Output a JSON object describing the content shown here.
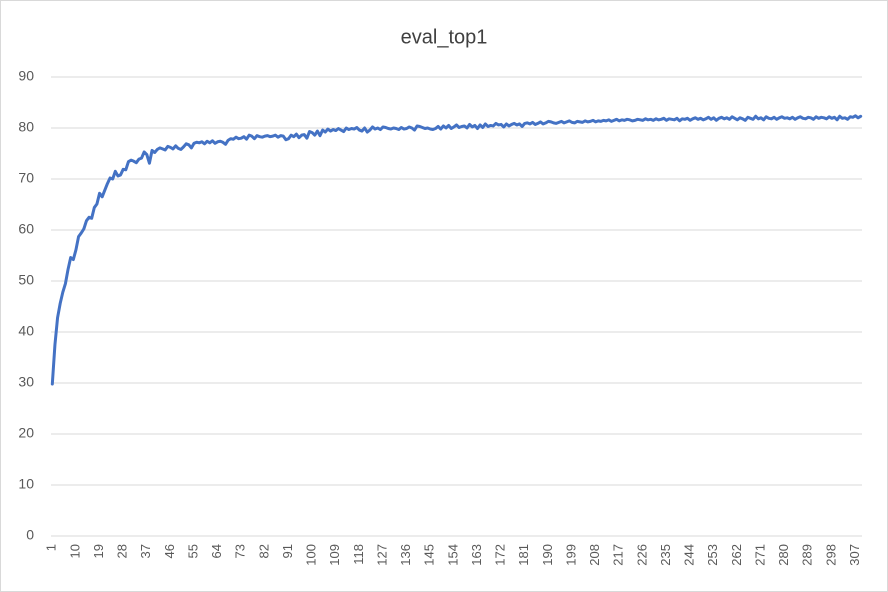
{
  "chart_data": {
    "type": "line",
    "title": "eval_top1",
    "categories": [
      1,
      null,
      null,
      null,
      null,
      null,
      null,
      null,
      null,
      10,
      null,
      null,
      null,
      null,
      null,
      null,
      null,
      null,
      19,
      null,
      null,
      null,
      null,
      null,
      null,
      null,
      null,
      28,
      null,
      null,
      null,
      null,
      null,
      null,
      null,
      null,
      37,
      null,
      null,
      null,
      null,
      null,
      null,
      null,
      null,
      46,
      null,
      null,
      null,
      null,
      null,
      null,
      null,
      null,
      55,
      null,
      null,
      null,
      null,
      null,
      null,
      null,
      null,
      64,
      null,
      null,
      null,
      null,
      null,
      null,
      null,
      null,
      73,
      null,
      null,
      null,
      null,
      null,
      null,
      null,
      null,
      82,
      null,
      null,
      null,
      null,
      null,
      null,
      null,
      null,
      91,
      null,
      null,
      null,
      null,
      null,
      null,
      null,
      null,
      100,
      null,
      null,
      null,
      null,
      null,
      null,
      null,
      null,
      109,
      null,
      null,
      null,
      null,
      null,
      null,
      null,
      null,
      118,
      null,
      null,
      null,
      null,
      null,
      null,
      null,
      null,
      127,
      null,
      null,
      null,
      null,
      null,
      null,
      null,
      null,
      136,
      null,
      null,
      null,
      null,
      null,
      null,
      null,
      null,
      145,
      null,
      null,
      null,
      null,
      null,
      null,
      null,
      null,
      154,
      null,
      null,
      null,
      null,
      null,
      null,
      null,
      null,
      163,
      null,
      null,
      null,
      null,
      null,
      null,
      null,
      null,
      172,
      null,
      null,
      null,
      null,
      null,
      null,
      null,
      null,
      181,
      null,
      null,
      null,
      null,
      null,
      null,
      null,
      null,
      190,
      null,
      null,
      null,
      null,
      null,
      null,
      null,
      null,
      199,
      null,
      null,
      null,
      null,
      null,
      null,
      null,
      null,
      208,
      null,
      null,
      null,
      null,
      null,
      null,
      null,
      null,
      217,
      null,
      null,
      null,
      null,
      null,
      null,
      null,
      null,
      226,
      null,
      null,
      null,
      null,
      null,
      null,
      null,
      null,
      235,
      null,
      null,
      null,
      null,
      null,
      null,
      null,
      null,
      244,
      null,
      null,
      null,
      null,
      null,
      null,
      null,
      null,
      253,
      null,
      null,
      null,
      null,
      null,
      null,
      null,
      null,
      262,
      null,
      null,
      null,
      null,
      null,
      null,
      null,
      null,
      271,
      null,
      null,
      null,
      null,
      null,
      null,
      null,
      null,
      280,
      null,
      null,
      null,
      null,
      null,
      null,
      null,
      null,
      289,
      null,
      null,
      null,
      null,
      null,
      null,
      null,
      null,
      298,
      null,
      null,
      null,
      null,
      null,
      null,
      null,
      null,
      307,
      null,
      null
    ],
    "series": [
      {
        "color": "#4472c4",
        "values": [
          29.8,
          37.5,
          42.8,
          45.6,
          47.8,
          49.5,
          52.3,
          54.6,
          54.2,
          56.1,
          58.7,
          59.4,
          60.2,
          61.8,
          62.5,
          62.3,
          64.4,
          65.1,
          67.2,
          66.5,
          67.8,
          69.1,
          70.2,
          70.0,
          71.5,
          70.6,
          70.8,
          71.9,
          71.8,
          73.4,
          73.7,
          73.5,
          73.2,
          73.9,
          74.1,
          75.3,
          74.8,
          73.1,
          75.6,
          75.2,
          75.8,
          76.1,
          75.9,
          75.7,
          76.4,
          76.2,
          75.9,
          76.5,
          76.0,
          75.8,
          76.3,
          76.9,
          76.7,
          76.1,
          77.0,
          77.2,
          77.1,
          77.3,
          76.9,
          77.4,
          77.1,
          77.5,
          77.0,
          77.3,
          77.4,
          77.2,
          76.8,
          77.6,
          77.9,
          77.8,
          78.2,
          77.9,
          78.0,
          78.3,
          77.8,
          78.6,
          78.4,
          77.9,
          78.5,
          78.3,
          78.2,
          78.4,
          78.5,
          78.3,
          78.4,
          78.6,
          78.2,
          78.5,
          78.4,
          77.7,
          77.9,
          78.6,
          78.3,
          78.8,
          78.1,
          78.6,
          78.7,
          78.0,
          79.3,
          79.1,
          78.6,
          79.4,
          78.5,
          79.6,
          79.2,
          79.8,
          79.4,
          79.7,
          79.5,
          79.9,
          79.6,
          79.3,
          80.0,
          79.7,
          79.9,
          79.8,
          80.1,
          79.6,
          79.4,
          80.0,
          79.2,
          79.6,
          80.2,
          79.8,
          80.0,
          79.7,
          80.2,
          80.1,
          79.9,
          79.8,
          80.0,
          79.9,
          79.7,
          80.1,
          79.8,
          79.9,
          80.2,
          80.0,
          79.6,
          80.4,
          80.3,
          80.1,
          79.9,
          80.0,
          79.8,
          79.7,
          79.9,
          80.3,
          79.8,
          80.4,
          80.0,
          80.5,
          79.9,
          80.2,
          80.6,
          80.1,
          80.3,
          80.4,
          80.0,
          80.7,
          80.2,
          80.5,
          79.9,
          80.6,
          80.1,
          80.8,
          80.3,
          80.5,
          80.4,
          80.9,
          80.6,
          80.7,
          80.2,
          80.8,
          80.4,
          80.7,
          80.9,
          80.6,
          80.8,
          80.3,
          80.9,
          81.0,
          80.8,
          81.1,
          80.7,
          80.9,
          81.2,
          80.8,
          81.0,
          81.3,
          81.2,
          81.0,
          80.9,
          81.1,
          81.3,
          81.0,
          81.2,
          81.4,
          81.1,
          81.0,
          81.3,
          81.2,
          81.1,
          81.4,
          81.2,
          81.3,
          81.5,
          81.2,
          81.4,
          81.3,
          81.5,
          81.4,
          81.6,
          81.3,
          81.5,
          81.7,
          81.4,
          81.6,
          81.5,
          81.7,
          81.6,
          81.4,
          81.5,
          81.7,
          81.6,
          81.5,
          81.8,
          81.6,
          81.7,
          81.5,
          81.8,
          81.6,
          81.7,
          81.9,
          81.5,
          81.8,
          81.7,
          81.6,
          81.9,
          81.4,
          81.8,
          81.7,
          81.9,
          81.5,
          81.8,
          82.0,
          81.7,
          81.9,
          81.6,
          81.8,
          82.1,
          81.7,
          82.0,
          81.5,
          81.9,
          82.1,
          81.8,
          82.0,
          81.7,
          82.2,
          81.9,
          81.6,
          82.0,
          81.8,
          81.5,
          82.1,
          81.9,
          81.7,
          82.3,
          81.8,
          82.0,
          81.6,
          82.2,
          81.9,
          81.8,
          82.1,
          81.7,
          82.0,
          82.2,
          81.9,
          82.0,
          81.8,
          82.1,
          81.7,
          82.0,
          82.2,
          81.9,
          81.8,
          82.1,
          82.0,
          81.7,
          82.2,
          81.9,
          82.1,
          82.0,
          81.8,
          82.2,
          81.9,
          82.1,
          81.6,
          82.3,
          81.9,
          82.0,
          81.7,
          82.2,
          82.1,
          82.4,
          82.0,
          82.3
        ]
      }
    ],
    "ylim": [
      0,
      90
    ],
    "yticks": [
      0,
      10,
      20,
      30,
      40,
      50,
      60,
      70,
      80,
      90
    ],
    "grid": true
  }
}
